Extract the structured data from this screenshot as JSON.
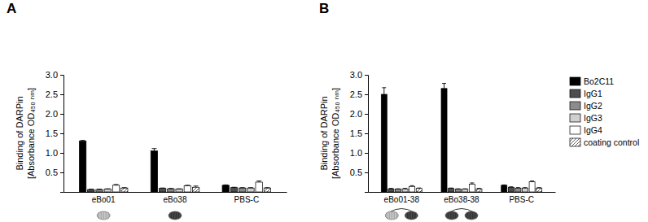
{
  "chart_data": [
    {
      "type": "bar",
      "title": "A",
      "ylabel": [
        "Binding of DARPin",
        "[Absorbance OD₄₅₀ ₙₘ]"
      ],
      "categories": [
        "eBo01",
        "eBo38",
        "PBS-C"
      ],
      "ylim": [
        0,
        3
      ],
      "yticks": [
        0.5,
        {
          "value": 1,
          "label": "1.0"
        },
        1.5,
        {
          "value": 2,
          "label": "2.0"
        },
        2.5,
        {
          "value": 3,
          "label": "3.0"
        }
      ],
      "series": [
        {
          "color": "#000000",
          "values": [
            1.3,
            1.05,
            0.17
          ],
          "errors": [
            0.02,
            0.06,
            0.01
          ]
        },
        {
          "color": "#4d4d4d",
          "values": [
            0.06,
            0.09,
            0.11
          ],
          "errors": [
            0.01,
            0.01,
            0.01
          ]
        },
        {
          "color": "#8c8c8c",
          "values": [
            0.06,
            0.08,
            0.1
          ],
          "errors": [
            0.01,
            0.01,
            0.01
          ]
        },
        {
          "color": "#d0d0d0",
          "values": [
            0.07,
            0.07,
            0.1
          ],
          "errors": [
            0.01,
            0.01,
            0.01
          ]
        },
        {
          "color": "#ffffff",
          "values": [
            0.17,
            0.16,
            0.25
          ],
          "errors": [
            0.02,
            0.01,
            0.03
          ]
        },
        {
          "color": "#ffffff",
          "marker": "hatch",
          "values": [
            0.1,
            0.12,
            0.1
          ],
          "errors": [
            0.01,
            0.03,
            0.01
          ]
        }
      ]
    },
    {
      "type": "bar",
      "title": "B",
      "ylabel": [
        "Binding of DARPin",
        "[Absorbance OD₄₅₀ ₙₘ]"
      ],
      "categories": [
        "eBo01-38",
        "eBo38-38",
        "PBS-C"
      ],
      "ylim": [
        0,
        3
      ],
      "yticks": [
        0.5,
        {
          "value": 1,
          "label": "1.0"
        },
        1.5,
        {
          "value": 2,
          "label": "2.0"
        },
        2.5,
        {
          "value": 3,
          "label": "3.0"
        }
      ],
      "legend": "right",
      "series": [
        {
          "name": "Bo2C11",
          "color": "#000000",
          "values": [
            2.5,
            2.65,
            0.17
          ],
          "errors": [
            0.17,
            0.13,
            0.01
          ]
        },
        {
          "name": "IgG1",
          "color": "#4d4d4d",
          "values": [
            0.08,
            0.09,
            0.12
          ],
          "errors": [
            0.01,
            0.01,
            0.01
          ]
        },
        {
          "name": "IgG2",
          "color": "#8c8c8c",
          "values": [
            0.07,
            0.07,
            0.1
          ],
          "errors": [
            0.01,
            0.01,
            0.01
          ]
        },
        {
          "name": "IgG3",
          "color": "#d0d0d0",
          "values": [
            0.08,
            0.07,
            0.1
          ],
          "errors": [
            0.01,
            0.01,
            0.01
          ]
        },
        {
          "name": "IgG4",
          "color": "#ffffff",
          "values": [
            0.14,
            0.2,
            0.26
          ],
          "errors": [
            0.02,
            0.03,
            0.02
          ]
        },
        {
          "name": "coating control",
          "color": "#ffffff",
          "marker": "hatch",
          "values": [
            0.09,
            0.08,
            0.1
          ],
          "errors": [
            0.01,
            0.01,
            0.01
          ]
        }
      ]
    }
  ]
}
